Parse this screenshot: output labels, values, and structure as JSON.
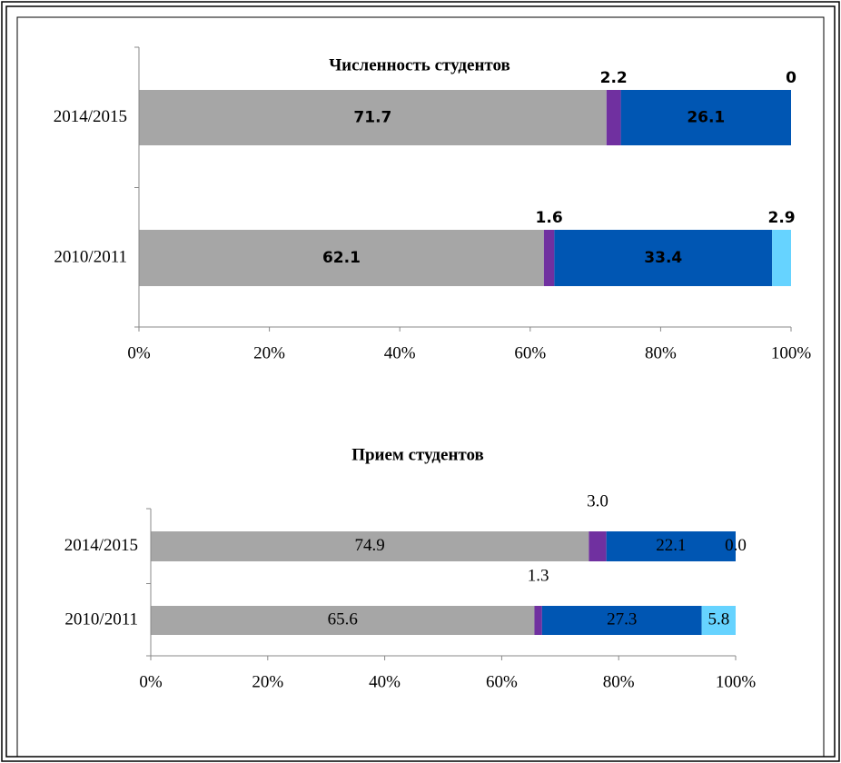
{
  "chart_data": [
    {
      "type": "bar",
      "orientation": "horizontal",
      "stacked": true,
      "title": "Численность студентов",
      "categories": [
        "2014/2015",
        "2010/2011"
      ],
      "series": [
        {
          "color": "#a6a6a6",
          "values": [
            71.7,
            62.1
          ]
        },
        {
          "color": "#7030a0",
          "values": [
            2.2,
            1.6
          ]
        },
        {
          "color": "#0056b3",
          "values": [
            26.1,
            33.4
          ]
        },
        {
          "color": "#66d3ff",
          "values": [
            0,
            2.9
          ]
        }
      ],
      "xlim": [
        0,
        100
      ],
      "xticks": [
        {
          "value": 0,
          "label": "0%"
        },
        {
          "value": 20,
          "label": "20%"
        },
        {
          "value": 40,
          "label": "40%"
        },
        {
          "value": 60,
          "label": "60%"
        },
        {
          "value": 80,
          "label": "80%"
        },
        {
          "value": 100,
          "label": "100%"
        }
      ]
    },
    {
      "type": "bar",
      "orientation": "horizontal",
      "stacked": true,
      "title": "Прием студентов",
      "categories": [
        "2014/2015",
        "2010/2011"
      ],
      "series": [
        {
          "color": "#a6a6a6",
          "values": [
            74.9,
            65.6
          ],
          "value_labels": [
            "74.9",
            "65.6"
          ]
        },
        {
          "color": "#7030a0",
          "values": [
            3,
            1.3
          ],
          "value_labels": [
            "3.0",
            "1.3"
          ]
        },
        {
          "color": "#0056b3",
          "values": [
            22.1,
            27.3
          ],
          "value_labels": [
            "22.1",
            "27.3"
          ]
        },
        {
          "color": "#66d3ff",
          "values": [
            0,
            5.8
          ],
          "value_labels": [
            "0.0",
            "5.8"
          ]
        }
      ],
      "xlim": [
        0,
        100
      ],
      "xticks": [
        {
          "value": 0,
          "label": "0%"
        },
        {
          "value": 20,
          "label": "20%"
        },
        {
          "value": 40,
          "label": "40%"
        },
        {
          "value": 60,
          "label": "60%"
        },
        {
          "value": 80,
          "label": "80%"
        },
        {
          "value": 100,
          "label": "100%"
        }
      ]
    }
  ]
}
